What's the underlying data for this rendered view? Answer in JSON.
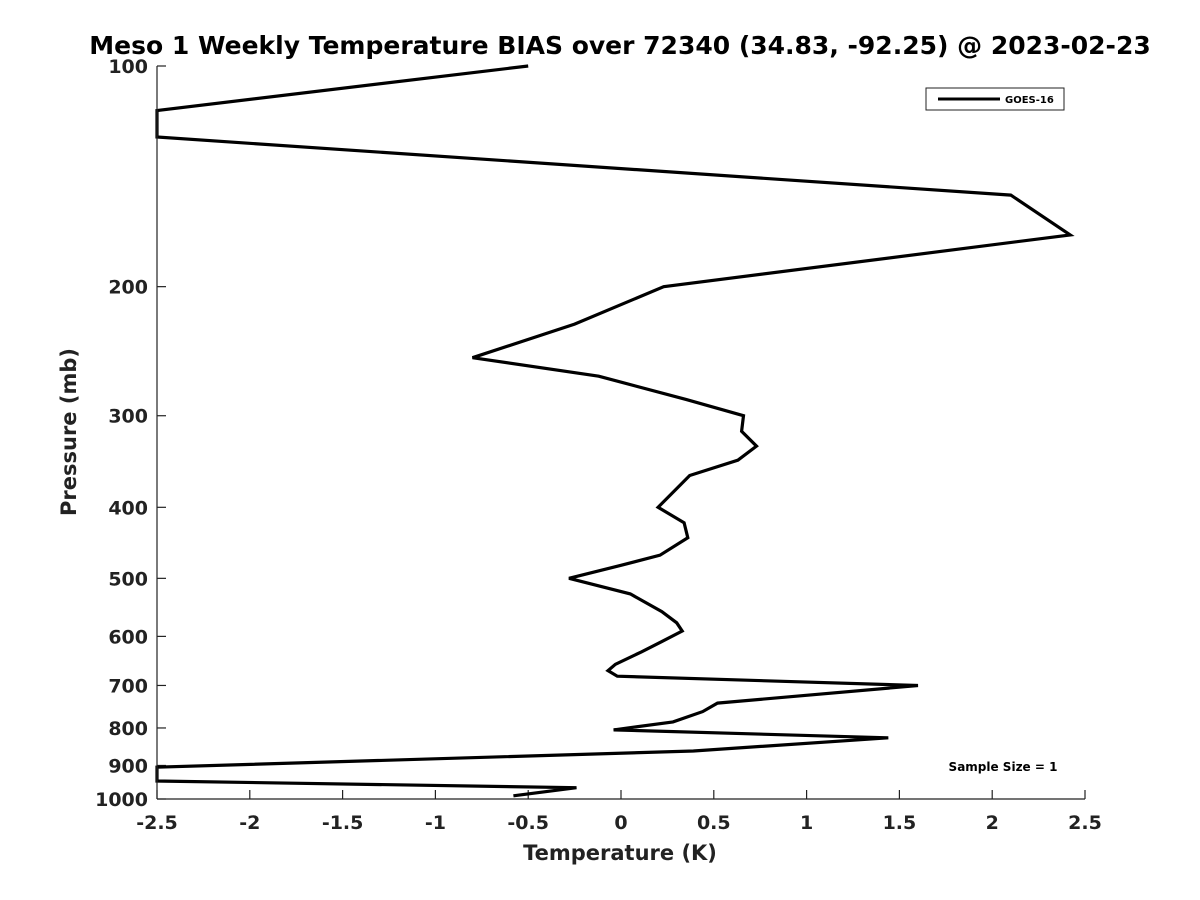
{
  "chart_data": {
    "type": "line",
    "title": "Meso 1 Weekly Temperature BIAS over 72340 (34.83, -92.25) @ 2023-02-23",
    "xlabel": "Temperature (K)",
    "ylabel": "Pressure (mb)",
    "xlim": [
      -2.5,
      2.5
    ],
    "ylim": [
      100,
      1000
    ],
    "y_scale": "log",
    "y_reversed": true,
    "x_ticks": [
      -2.5,
      -2,
      -1.5,
      -1,
      -0.5,
      0,
      0.5,
      1,
      1.5,
      2,
      2.5
    ],
    "x_tick_labels": [
      "-2.5",
      "-2",
      "-1.5",
      "-1",
      "-0.5",
      "0",
      "0.5",
      "1",
      "1.5",
      "2",
      "2.5"
    ],
    "y_ticks": [
      100,
      200,
      300,
      400,
      500,
      600,
      700,
      800,
      900,
      1000
    ],
    "y_tick_labels": [
      "100",
      "200",
      "300",
      "400",
      "500",
      "600",
      "700",
      "800",
      "900",
      "1000"
    ],
    "grid": false,
    "legend_position": "top-right",
    "series": [
      {
        "name": "GOES-16",
        "color": "#000000",
        "x": [
          -0.5,
          -2.5,
          -2.5,
          2.1,
          2.42,
          0.23,
          -0.25,
          -0.8,
          -0.12,
          0.35,
          0.66,
          0.65,
          0.73,
          0.63,
          0.37,
          0.2,
          0.34,
          0.36,
          0.21,
          0.0,
          -0.28,
          0.05,
          0.22,
          0.3,
          0.33,
          0.22,
          0.11,
          -0.03,
          -0.07,
          -0.02,
          1.6,
          0.52,
          0.44,
          0.28,
          -0.04,
          1.44,
          0.39,
          -2.5,
          -2.5,
          -0.24,
          -0.58
        ],
        "y": [
          100,
          115,
          125,
          150,
          170,
          200,
          225,
          250,
          265,
          285,
          300,
          315,
          330,
          345,
          362,
          400,
          420,
          440,
          465,
          480,
          500,
          525,
          555,
          575,
          590,
          610,
          630,
          655,
          668,
          680,
          700,
          740,
          760,
          785,
          805,
          825,
          860,
          905,
          945,
          965,
          990
        ]
      }
    ],
    "annotation": "Sample Size = 1"
  }
}
